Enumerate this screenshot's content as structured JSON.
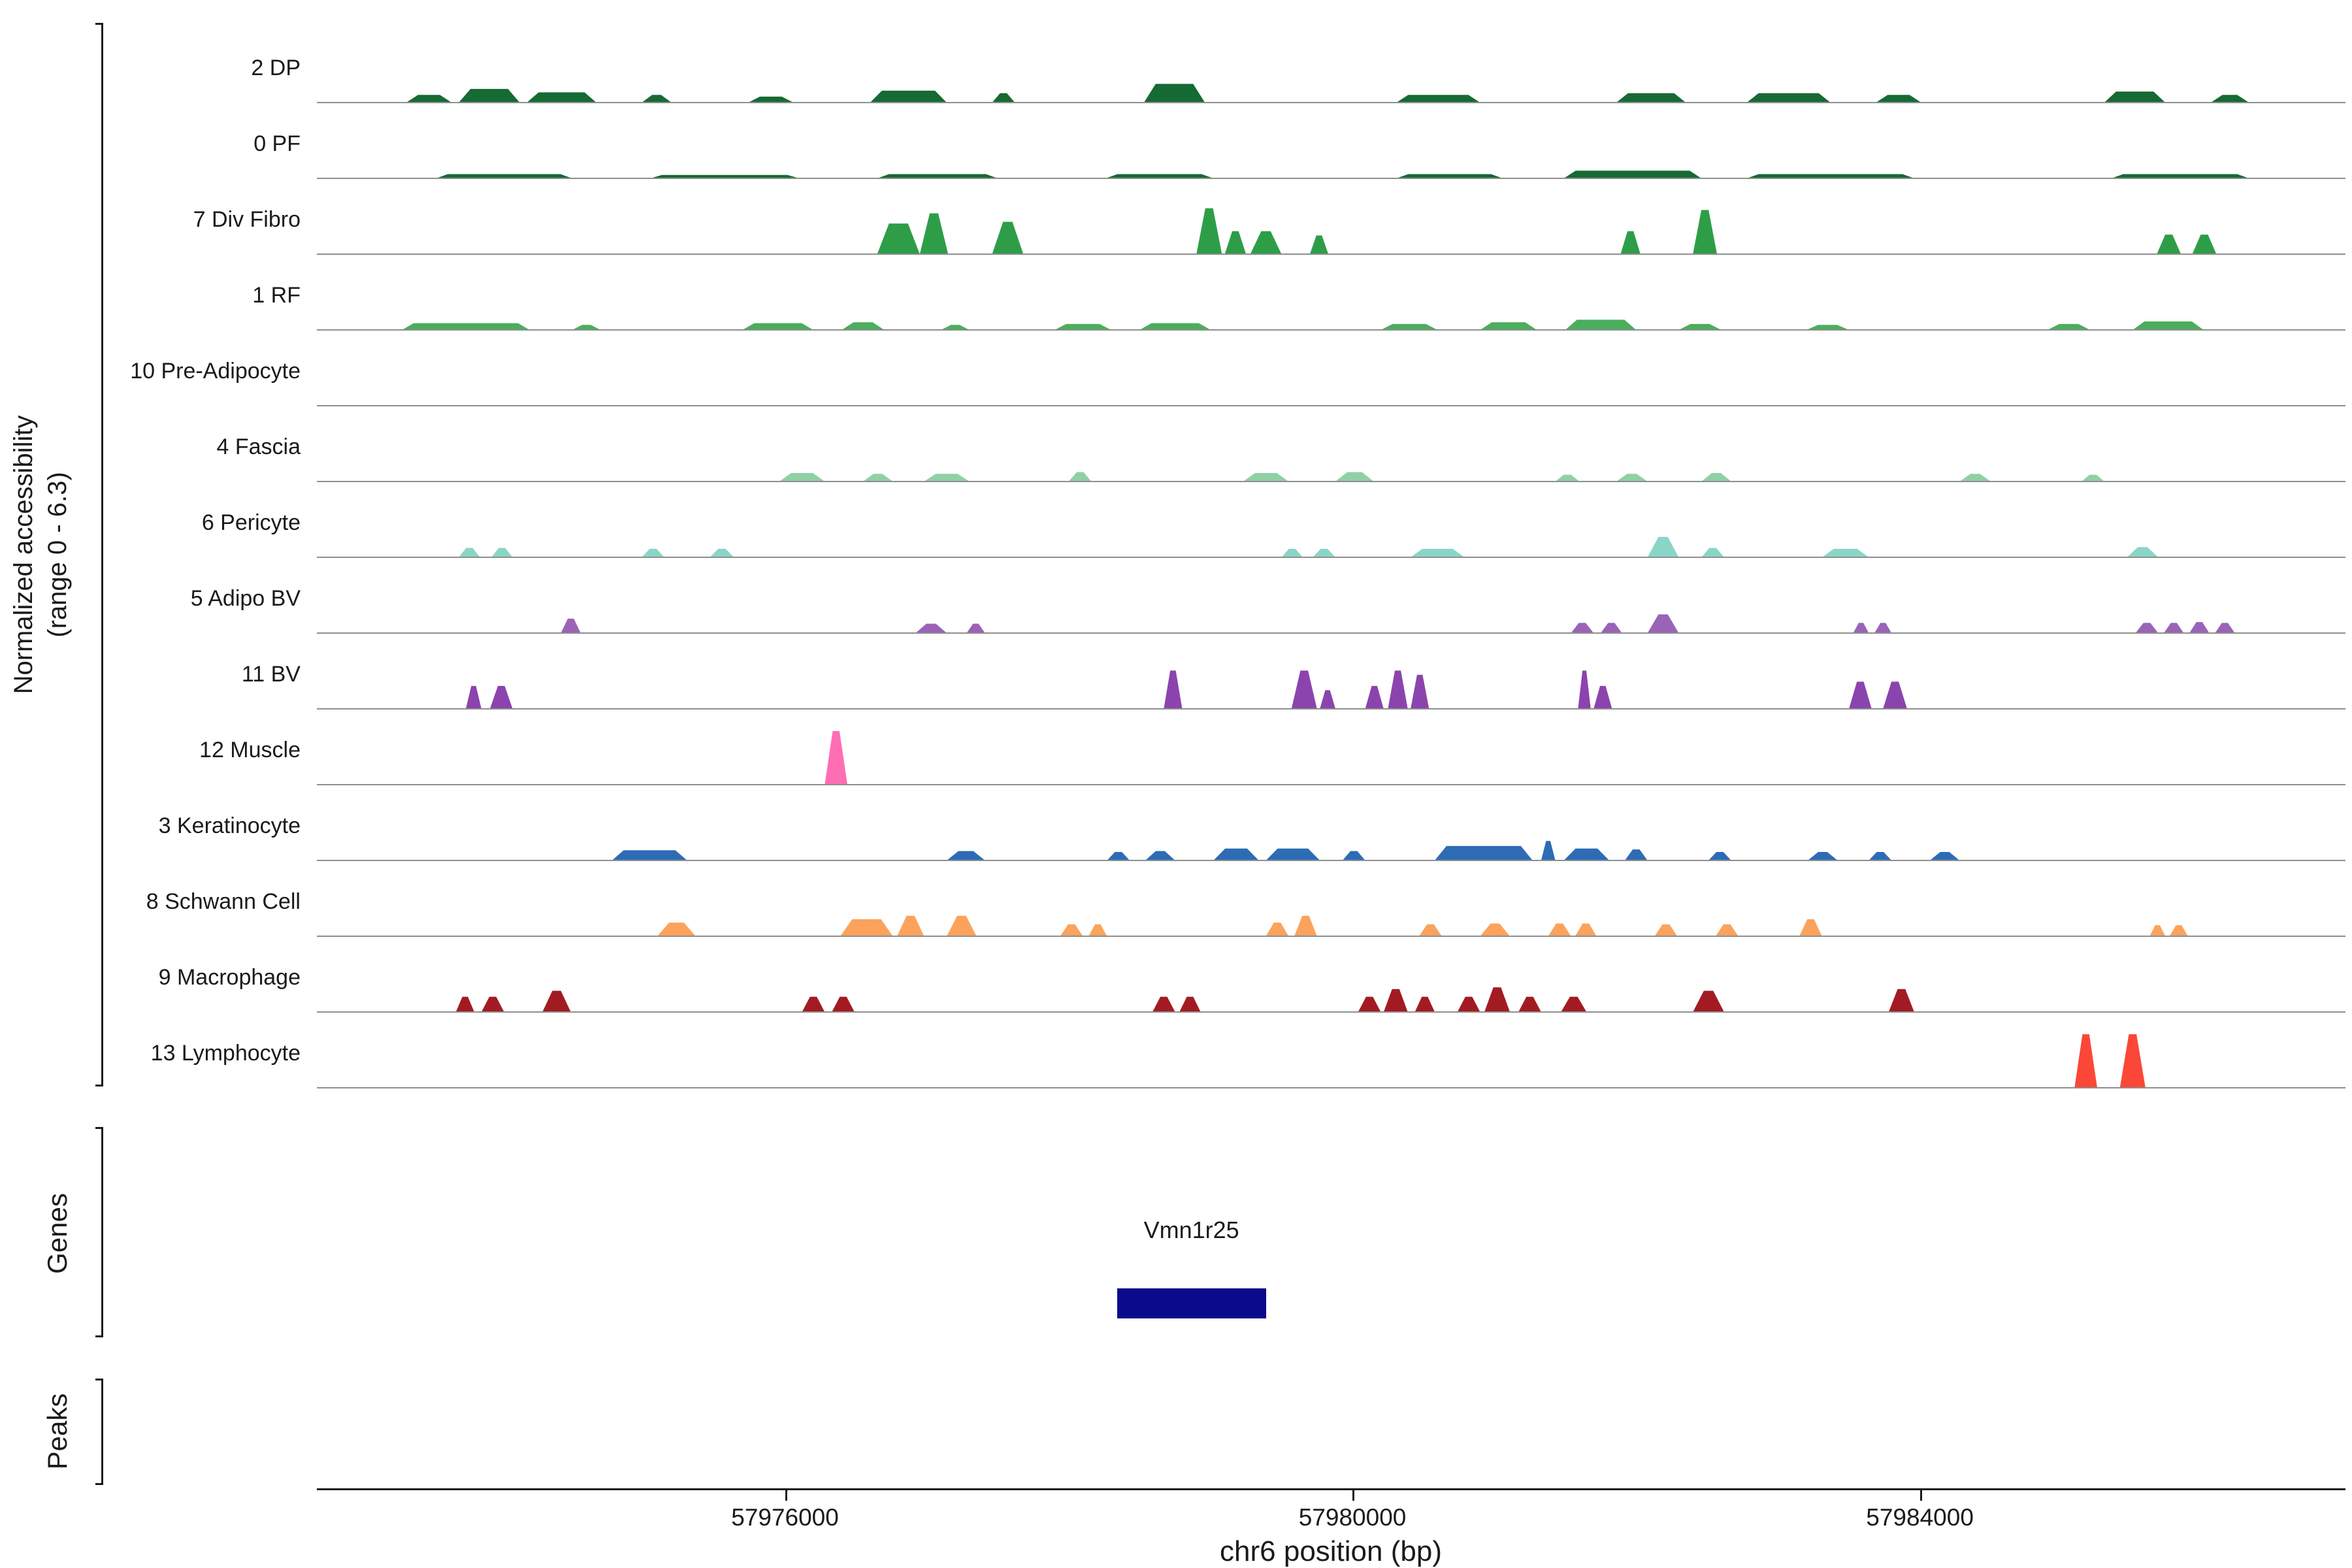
{
  "figure": {
    "y_axis_label_line1": "Normalized accessibility",
    "y_axis_label_line2": "(range 0 - 6.3)",
    "genes_label": "Genes",
    "peaks_label": "Peaks",
    "x_axis_title": "chr6 position (bp)"
  },
  "chart_data": {
    "type": "area",
    "description": "Genome browser coverage tracks of normalized chromatin accessibility per cell-type cluster along chr6, with a gene annotation row (Vmn1r25) and an empty peaks row.",
    "x_domain": [
      57972700,
      57987000
    ],
    "x_ticks": [
      57976000,
      57980000,
      57984000
    ],
    "y_range": [
      0,
      6.3
    ],
    "baseline_color": "#8f8f8f",
    "axis_color": "#1a1a1a",
    "tracks": [
      {
        "label": "2 DP",
        "color": "#166a33",
        "peaks": [
          [
            57973330,
            57973650,
            0.9
          ],
          [
            57973700,
            57974130,
            1.6
          ],
          [
            57974180,
            57974670,
            1.2
          ],
          [
            57974990,
            57975200,
            0.9
          ],
          [
            57975740,
            57976060,
            0.7
          ],
          [
            57976600,
            57977140,
            1.4
          ],
          [
            57977460,
            57977620,
            1.1
          ],
          [
            57978530,
            57978960,
            2.2
          ],
          [
            57980310,
            57980900,
            0.9
          ],
          [
            57981860,
            57982350,
            1.1
          ],
          [
            57982780,
            57983370,
            1.1
          ],
          [
            57983690,
            57984010,
            0.9
          ],
          [
            57985300,
            57985730,
            1.3
          ],
          [
            57986050,
            57986320,
            0.9
          ]
        ]
      },
      {
        "label": "0 PF",
        "color": "#166a33",
        "peaks": [
          [
            57973540,
            57974500,
            0.5
          ],
          [
            57975050,
            57976100,
            0.4
          ],
          [
            57976650,
            57977500,
            0.5
          ],
          [
            57978260,
            57979020,
            0.5
          ],
          [
            57980310,
            57981060,
            0.5
          ],
          [
            57981490,
            57982460,
            0.9
          ],
          [
            57982780,
            57983960,
            0.5
          ],
          [
            57985350,
            57986320,
            0.5
          ]
        ]
      },
      {
        "label": "7 Div Fibro",
        "color": "#2d9e47",
        "peaks": [
          [
            57976650,
            57976950,
            3.6
          ],
          [
            57976950,
            57977150,
            4.8
          ],
          [
            57977460,
            57977680,
            3.8
          ],
          [
            57978900,
            57979080,
            5.4
          ],
          [
            57979100,
            57979250,
            2.7
          ],
          [
            57979280,
            57979500,
            2.7
          ],
          [
            57979700,
            57979830,
            2.2
          ],
          [
            57981890,
            57982030,
            2.7
          ],
          [
            57982400,
            57982570,
            5.2
          ],
          [
            57985670,
            57985840,
            2.3
          ],
          [
            57985920,
            57986090,
            2.3
          ]
        ]
      },
      {
        "label": "1 RF",
        "color": "#4bae5c",
        "peaks": [
          [
            57973300,
            57974200,
            0.8
          ],
          [
            57974500,
            57974700,
            0.6
          ],
          [
            57975700,
            57976200,
            0.8
          ],
          [
            57976400,
            57976700,
            0.9
          ],
          [
            57977100,
            57977300,
            0.6
          ],
          [
            57977900,
            57978300,
            0.7
          ],
          [
            57978500,
            57979000,
            0.8
          ],
          [
            57980200,
            57980600,
            0.7
          ],
          [
            57980900,
            57981300,
            0.9
          ],
          [
            57981500,
            57982000,
            1.2
          ],
          [
            57982300,
            57982600,
            0.7
          ],
          [
            57983200,
            57983500,
            0.6
          ],
          [
            57984900,
            57985200,
            0.7
          ],
          [
            57985500,
            57986000,
            1.0
          ]
        ]
      },
      {
        "label": "10 Pre-Adipocyte",
        "color": "#8ecf9a",
        "peaks": []
      },
      {
        "label": "4 Fascia",
        "color": "#8fd0a5",
        "peaks": [
          [
            57975960,
            57976280,
            1.0
          ],
          [
            57976550,
            57976760,
            0.9
          ],
          [
            57976980,
            57977300,
            0.9
          ],
          [
            57978000,
            57978160,
            1.1
          ],
          [
            57979230,
            57979550,
            1.0
          ],
          [
            57979880,
            57980150,
            1.1
          ],
          [
            57981430,
            57981600,
            0.8
          ],
          [
            57981860,
            57982080,
            0.9
          ],
          [
            57982460,
            57982670,
            1.0
          ],
          [
            57984280,
            57984500,
            0.9
          ],
          [
            57985140,
            57985300,
            0.8
          ]
        ]
      },
      {
        "label": "6 Pericyte",
        "color": "#8ad6c6",
        "peaks": [
          [
            57973700,
            57973850,
            1.1
          ],
          [
            57973930,
            57974080,
            1.1
          ],
          [
            57974990,
            57975150,
            1.0
          ],
          [
            57975470,
            57975640,
            1.0
          ],
          [
            57979500,
            57979650,
            1.0
          ],
          [
            57979720,
            57979880,
            1.0
          ],
          [
            57980410,
            57980790,
            1.0
          ],
          [
            57982080,
            57982300,
            2.4
          ],
          [
            57982460,
            57982620,
            1.1
          ],
          [
            57983310,
            57983640,
            1.0
          ],
          [
            57985460,
            57985680,
            1.2
          ]
        ]
      },
      {
        "label": "5 Adipo BV",
        "color": "#9a63b8",
        "peaks": [
          [
            57974420,
            57974560,
            1.7
          ],
          [
            57976920,
            57977140,
            1.1
          ],
          [
            57977280,
            57977410,
            1.1
          ],
          [
            57981540,
            57981700,
            1.2
          ],
          [
            57981750,
            57981900,
            1.2
          ],
          [
            57982080,
            57982300,
            2.2
          ],
          [
            57983530,
            57983640,
            1.2
          ],
          [
            57983680,
            57983800,
            1.2
          ],
          [
            57985520,
            57985680,
            1.2
          ],
          [
            57985720,
            57985860,
            1.2
          ],
          [
            57985900,
            57986040,
            1.3
          ],
          [
            57986080,
            57986220,
            1.2
          ]
        ]
      },
      {
        "label": "11 BV",
        "color": "#8b44ad",
        "peaks": [
          [
            57973750,
            57973860,
            2.7
          ],
          [
            57973920,
            57974080,
            2.7
          ],
          [
            57978670,
            57978800,
            4.5
          ],
          [
            57979570,
            57979750,
            4.5
          ],
          [
            57979770,
            57979880,
            2.2
          ],
          [
            57980090,
            57980220,
            2.7
          ],
          [
            57980250,
            57980390,
            4.5
          ],
          [
            57980410,
            57980540,
            4.0
          ],
          [
            57981590,
            57981680,
            4.5
          ],
          [
            57981700,
            57981830,
            2.7
          ],
          [
            57983500,
            57983660,
            3.2
          ],
          [
            57983740,
            57983910,
            3.2
          ]
        ]
      },
      {
        "label": "12 Muscle",
        "color": "#ff6eb4",
        "peaks": [
          [
            57976280,
            57976440,
            6.3
          ]
        ]
      },
      {
        "label": "3 Keratinocyte",
        "color": "#2d6cb5",
        "peaks": [
          [
            57974780,
            57975310,
            1.2
          ],
          [
            57977140,
            57977410,
            1.1
          ],
          [
            57978270,
            57978430,
            1.0
          ],
          [
            57978540,
            57978750,
            1.1
          ],
          [
            57979020,
            57979340,
            1.4
          ],
          [
            57979390,
            57979770,
            1.4
          ],
          [
            57979930,
            57980090,
            1.1
          ],
          [
            57980580,
            57981270,
            1.7
          ],
          [
            57981330,
            57981430,
            2.3
          ],
          [
            57981490,
            57981810,
            1.4
          ],
          [
            57981920,
            57982080,
            1.3
          ],
          [
            57982510,
            57982670,
            1.0
          ],
          [
            57983210,
            57983420,
            1.0
          ],
          [
            57983640,
            57983800,
            1.0
          ],
          [
            57984070,
            57984280,
            1.0
          ]
        ]
      },
      {
        "label": "8 Schwann Cell",
        "color": "#fba35c",
        "peaks": [
          [
            57975100,
            57975370,
            1.6
          ],
          [
            57976390,
            57976760,
            2.0
          ],
          [
            57976790,
            57976980,
            2.4
          ],
          [
            57977140,
            57977350,
            2.4
          ],
          [
            57977940,
            57978100,
            1.4
          ],
          [
            57978140,
            57978270,
            1.4
          ],
          [
            57979390,
            57979550,
            1.6
          ],
          [
            57979590,
            57979750,
            2.4
          ],
          [
            57980470,
            57980630,
            1.4
          ],
          [
            57980900,
            57981110,
            1.5
          ],
          [
            57981380,
            57981540,
            1.5
          ],
          [
            57981570,
            57981720,
            1.5
          ],
          [
            57982130,
            57982290,
            1.4
          ],
          [
            57982560,
            57982720,
            1.4
          ],
          [
            57983150,
            57983310,
            2.0
          ],
          [
            57985620,
            57985730,
            1.3
          ],
          [
            57985760,
            57985890,
            1.3
          ]
        ]
      },
      {
        "label": "9 Macrophage",
        "color": "#a31b22",
        "peaks": [
          [
            57973680,
            57973810,
            1.8
          ],
          [
            57973860,
            57974020,
            1.8
          ],
          [
            57974290,
            57974490,
            2.5
          ],
          [
            57976120,
            57976280,
            1.8
          ],
          [
            57976330,
            57976490,
            1.8
          ],
          [
            57978590,
            57978750,
            1.8
          ],
          [
            57978780,
            57978930,
            1.8
          ],
          [
            57980040,
            57980200,
            1.8
          ],
          [
            57980220,
            57980390,
            2.7
          ],
          [
            57980440,
            57980580,
            1.8
          ],
          [
            57980740,
            57980900,
            1.8
          ],
          [
            57980930,
            57981110,
            2.9
          ],
          [
            57981170,
            57981330,
            1.8
          ],
          [
            57981470,
            57981650,
            1.8
          ],
          [
            57982400,
            57982620,
            2.5
          ],
          [
            57983780,
            57983960,
            2.7
          ]
        ]
      },
      {
        "label": "13 Lymphocyte",
        "color": "#fb4737",
        "peaks": [
          [
            57985090,
            57985250,
            6.3
          ],
          [
            57985410,
            57985590,
            6.3
          ]
        ]
      }
    ],
    "genes": [
      {
        "name": "Vmn1r25",
        "start": 57978340,
        "end": 57979390,
        "color": "#0a0a8a"
      }
    ],
    "peaks_track": []
  }
}
